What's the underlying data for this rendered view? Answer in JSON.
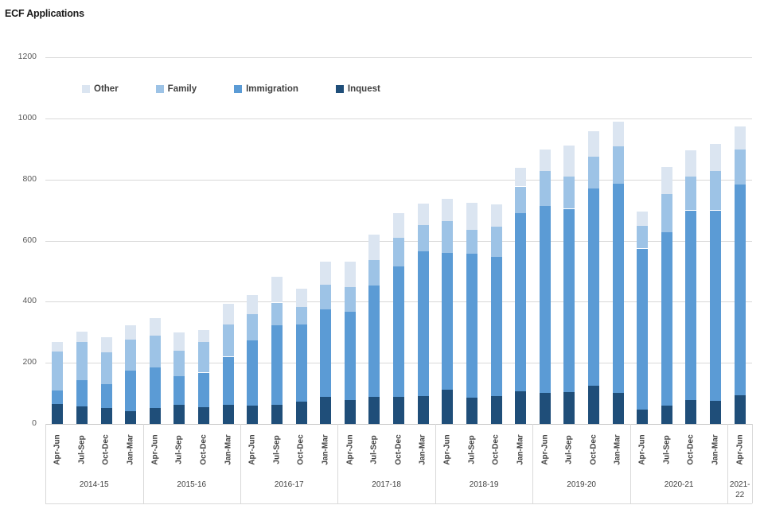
{
  "title": "ECF Applications",
  "colors": {
    "background": "#ffffff",
    "gridline": "#d9d9d9",
    "axis_line": "#c6c6c6",
    "tick_text": "#595959",
    "label_text": "#404040",
    "title_text": "#1a1a1a",
    "other": "#dbe5f1",
    "family": "#9dc3e6",
    "immigration": "#5b9bd5",
    "inquest": "#1f4e79"
  },
  "chart_data": {
    "type": "bar",
    "stacked": true,
    "title": "ECF Applications",
    "xlabel": "",
    "ylabel": "",
    "ylim": [
      0,
      1200
    ],
    "yticks": [
      1200,
      1000,
      800,
      600,
      400,
      200,
      0
    ],
    "grid": true,
    "legend_position": "top-inside-horizontal",
    "legend_order": [
      "Other",
      "Family",
      "Immigration",
      "Inquest"
    ],
    "year_groups": [
      {
        "label": "2014-15",
        "quarters": [
          "Apr-Jun",
          "Jul-Sep",
          "Oct-Dec",
          "Jan-Mar"
        ]
      },
      {
        "label": "2015-16",
        "quarters": [
          "Apr-Jun",
          "Jul-Sep",
          "Oct-Dec",
          "Jan-Mar"
        ]
      },
      {
        "label": "2016-17",
        "quarters": [
          "Apr-Jun",
          "Jul-Sep",
          "Oct-Dec",
          "Jan-Mar"
        ]
      },
      {
        "label": "2017-18",
        "quarters": [
          "Apr-Jun",
          "Jul-Sep",
          "Oct-Dec",
          "Jan-Mar"
        ]
      },
      {
        "label": "2018-19",
        "quarters": [
          "Apr-Jun",
          "Jul-Sep",
          "Oct-Dec",
          "Jan-Mar"
        ]
      },
      {
        "label": "2019-20",
        "quarters": [
          "Apr-Jun",
          "Jul-Sep",
          "Oct-Dec",
          "Jan-Mar"
        ]
      },
      {
        "label": "2020-21",
        "quarters": [
          "Apr-Jun",
          "Jul-Sep",
          "Oct-Dec",
          "Jan-Mar"
        ]
      },
      {
        "label": "2021-22",
        "quarters": [
          "Apr-Jun"
        ]
      }
    ],
    "series": [
      {
        "name": "Inquest",
        "color": "#1f4e79",
        "values": [
          64,
          57,
          52,
          41,
          52,
          63,
          55,
          62,
          59,
          62,
          72,
          88,
          79,
          88,
          88,
          92,
          113,
          87,
          90,
          107,
          102,
          104,
          126,
          101,
          46,
          59,
          79,
          77,
          94
        ]
      },
      {
        "name": "Immigration",
        "color": "#5b9bd5",
        "values": [
          45,
          85,
          77,
          134,
          134,
          93,
          113,
          158,
          215,
          260,
          253,
          286,
          289,
          366,
          428,
          473,
          446,
          469,
          456,
          583,
          611,
          600,
          645,
          686,
          528,
          568,
          620,
          622,
          689
        ]
      },
      {
        "name": "Family",
        "color": "#9dc3e6",
        "values": [
          129,
          126,
          106,
          102,
          103,
          83,
          100,
          105,
          86,
          75,
          57,
          81,
          80,
          82,
          93,
          86,
          105,
          80,
          100,
          87,
          114,
          105,
          105,
          121,
          73,
          125,
          110,
          128,
          114
        ]
      },
      {
        "name": "Other",
        "color": "#dbe5f1",
        "values": [
          30,
          33,
          49,
          47,
          58,
          61,
          39,
          67,
          61,
          84,
          61,
          75,
          82,
          84,
          81,
          71,
          73,
          87,
          73,
          61,
          72,
          101,
          82,
          81,
          48,
          88,
          86,
          90,
          77
        ]
      }
    ],
    "totals": [
      268,
      301,
      284,
      324,
      347,
      300,
      307,
      392,
      421,
      481,
      443,
      530,
      530,
      620,
      690,
      722,
      737,
      723,
      719,
      838,
      899,
      910,
      958,
      989,
      695,
      840,
      895,
      917,
      974
    ]
  }
}
